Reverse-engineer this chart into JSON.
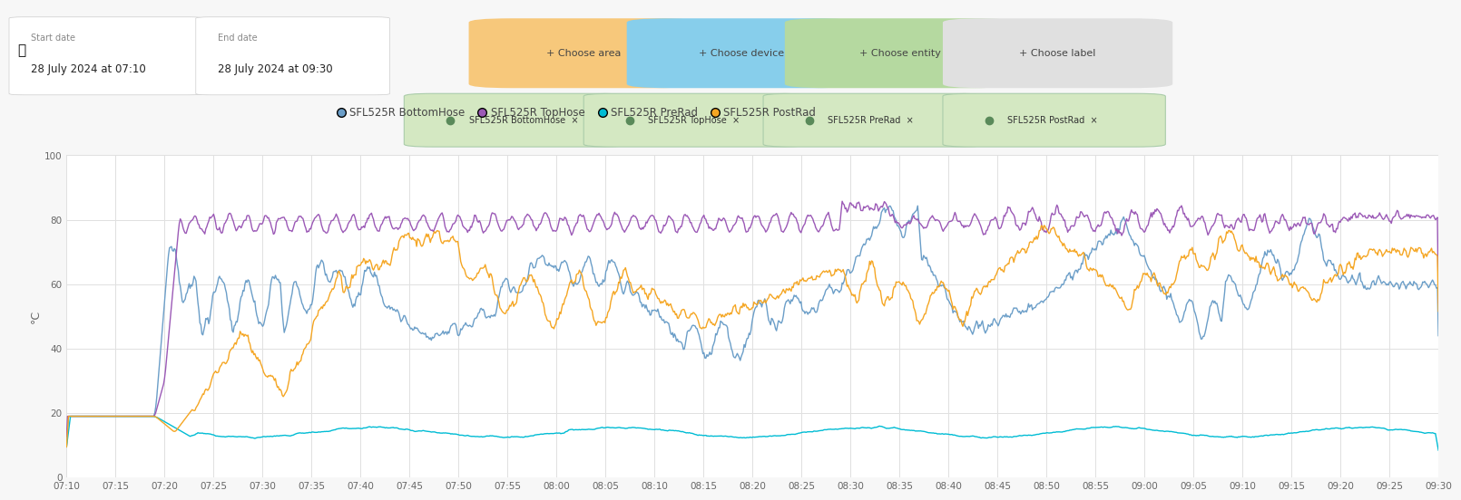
{
  "ylabel": "°C",
  "ylim": [
    0,
    100
  ],
  "yticks": [
    0,
    20,
    40,
    60,
    80,
    100
  ],
  "xtick_labels": [
    "07:10",
    "07:15",
    "07:20",
    "07:25",
    "07:30",
    "07:35",
    "07:40",
    "07:45",
    "07:50",
    "07:55",
    "08:00",
    "08:05",
    "08:10",
    "08:15",
    "08:20",
    "08:25",
    "08:30",
    "08:35",
    "08:40",
    "08:45",
    "08:50",
    "08:55",
    "09:00",
    "09:05",
    "09:10",
    "09:15",
    "09:20",
    "09:25",
    "09:30"
  ],
  "bg_color": "#f7f7f7",
  "plot_bg_color": "#ffffff",
  "grid_color": "#e0e0e0",
  "header_bg": "#f7f7f7",
  "start_date_label": "Start date",
  "start_date_value": "28 July 2024 at 07:10",
  "end_date_label": "End date",
  "end_date_value": "28 July 2024 at 09:30",
  "filter_buttons": [
    {
      "label": "Choose area",
      "color": "#f7c87b"
    },
    {
      "label": "Choose device",
      "color": "#87ceeb"
    },
    {
      "label": "Choose entity",
      "color": "#b5d9a0"
    },
    {
      "label": "Choose label",
      "color": "#e0e0e0"
    }
  ],
  "chip_color": "#d4e8c2",
  "chip_text_color": "#444444",
  "chip_labels": [
    "SFL525R BottomHose",
    "SFL525R TopHose",
    "SFL525R PreRad",
    "SFL525R PostRad"
  ],
  "series": [
    {
      "label": "SFL525R BottomHose",
      "color": "#6b9ec8"
    },
    {
      "label": "SFL525R TopHose",
      "color": "#9b59b6"
    },
    {
      "label": "SFL525R PreRad",
      "color": "#00bcd4"
    },
    {
      "label": "SFL525R PostRad",
      "color": "#f5a623"
    }
  ]
}
